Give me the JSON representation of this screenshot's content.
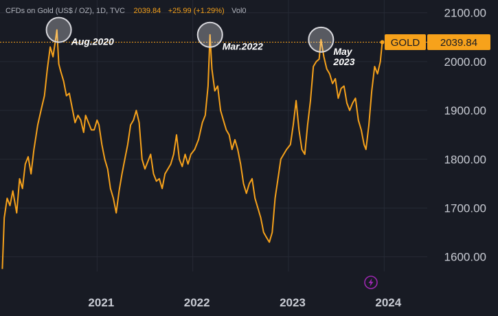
{
  "header": {
    "symbol": "CFDs on Gold (US$ / OZ), 1D, TVC",
    "price": "2039.84",
    "change": "+25.99 (+1.29%)",
    "volume": "Vol0"
  },
  "colors": {
    "background": "#181b24",
    "line": "#f7a21b",
    "grid": "#262a35",
    "text": "#c9ccd4",
    "annotation_circle": "#d9d9de"
  },
  "icons": [
    "lightning-logo-icon"
  ],
  "chart_data": {
    "type": "line",
    "title": "CFDs on Gold (US$ / OZ), 1D, TVC",
    "xlabel": "",
    "ylabel": "",
    "xlim": [
      2020.0,
      2024.45
    ],
    "ylim": [
      1570,
      2115
    ],
    "x_ticks": [
      {
        "value": 2021,
        "label": "2021"
      },
      {
        "value": 2022,
        "label": "2022"
      },
      {
        "value": 2023,
        "label": "2023"
      },
      {
        "value": 2024,
        "label": "2024"
      }
    ],
    "y_ticks": [
      {
        "value": 1600,
        "label": "1600.00"
      },
      {
        "value": 1700,
        "label": "1700.00"
      },
      {
        "value": 1800,
        "label": "1800.00"
      },
      {
        "value": 1900,
        "label": "1900.00"
      },
      {
        "value": 2000,
        "label": "2000.00"
      },
      {
        "value": 2100,
        "label": "2100.00"
      }
    ],
    "last_price_line": {
      "value": 2039.84
    },
    "price_tag": {
      "symbol": "GOLD",
      "value": "2039.84"
    },
    "annotations": [
      {
        "label": "Aug.2020",
        "x": 2020.6,
        "y": 2065
      },
      {
        "label": "Mar.2022",
        "x": 2022.18,
        "y": 2055
      },
      {
        "label": "May 2023",
        "lines": [
          "May",
          "2023"
        ],
        "x": 2023.34,
        "y": 2045
      }
    ],
    "series": [
      {
        "name": "Gold",
        "x": [
          2020.01,
          2020.03,
          2020.06,
          2020.09,
          2020.12,
          2020.16,
          2020.19,
          2020.22,
          2020.25,
          2020.28,
          2020.31,
          2020.34,
          2020.38,
          2020.42,
          2020.45,
          2020.48,
          2020.51,
          2020.54,
          2020.57,
          2020.58,
          2020.6,
          2020.62,
          2020.65,
          2020.68,
          2020.71,
          2020.74,
          2020.77,
          2020.8,
          2020.83,
          2020.86,
          2020.88,
          2020.91,
          2020.94,
          2020.97,
          2021.0,
          2021.02,
          2021.05,
          2021.08,
          2021.11,
          2021.14,
          2021.17,
          2021.2,
          2021.23,
          2021.26,
          2021.29,
          2021.32,
          2021.35,
          2021.38,
          2021.41,
          2021.44,
          2021.47,
          2021.5,
          2021.53,
          2021.56,
          2021.59,
          2021.62,
          2021.65,
          2021.68,
          2021.71,
          2021.74,
          2021.77,
          2021.8,
          2021.83,
          2021.86,
          2021.89,
          2021.92,
          2021.95,
          2021.98,
          2022.02,
          2022.06,
          2022.1,
          2022.13,
          2022.16,
          2022.18,
          2022.2,
          2022.23,
          2022.26,
          2022.29,
          2022.32,
          2022.35,
          2022.38,
          2022.41,
          2022.44,
          2022.47,
          2022.5,
          2022.53,
          2022.56,
          2022.59,
          2022.62,
          2022.65,
          2022.68,
          2022.71,
          2022.74,
          2022.77,
          2022.8,
          2022.83,
          2022.86,
          2022.89,
          2022.92,
          2022.95,
          2022.98,
          2023.02,
          2023.05,
          2023.08,
          2023.11,
          2023.14,
          2023.17,
          2023.2,
          2023.23,
          2023.26,
          2023.29,
          2023.32,
          2023.34,
          2023.37,
          2023.4,
          2023.43,
          2023.46,
          2023.49,
          2023.52,
          2023.55,
          2023.58,
          2023.61,
          2023.64,
          2023.67,
          2023.7,
          2023.73,
          2023.76,
          2023.79,
          2023.81,
          2023.84,
          2023.87,
          2023.9,
          2023.93,
          2023.96,
          2023.98
        ],
        "values": [
          1575,
          1680,
          1720,
          1705,
          1735,
          1690,
          1760,
          1740,
          1790,
          1805,
          1770,
          1820,
          1870,
          1905,
          1930,
          1985,
          2030,
          2010,
          2050,
          2065,
          1995,
          1980,
          1960,
          1930,
          1935,
          1905,
          1875,
          1890,
          1880,
          1855,
          1890,
          1875,
          1860,
          1860,
          1880,
          1870,
          1830,
          1800,
          1780,
          1740,
          1720,
          1690,
          1735,
          1770,
          1800,
          1830,
          1870,
          1880,
          1900,
          1875,
          1800,
          1780,
          1795,
          1810,
          1770,
          1755,
          1760,
          1740,
          1770,
          1780,
          1790,
          1810,
          1850,
          1800,
          1785,
          1810,
          1790,
          1810,
          1820,
          1840,
          1875,
          1890,
          1950,
          2055,
          1985,
          1940,
          1950,
          1900,
          1880,
          1860,
          1850,
          1820,
          1840,
          1820,
          1790,
          1750,
          1730,
          1750,
          1760,
          1720,
          1700,
          1680,
          1650,
          1640,
          1630,
          1650,
          1720,
          1760,
          1800,
          1810,
          1820,
          1830,
          1870,
          1920,
          1860,
          1820,
          1810,
          1870,
          1920,
          1990,
          2000,
          2005,
          2045,
          2010,
          1985,
          1975,
          1955,
          1965,
          1925,
          1945,
          1950,
          1915,
          1900,
          1915,
          1925,
          1880,
          1860,
          1830,
          1820,
          1870,
          1940,
          1990,
          1975,
          2000,
          2039.84
        ]
      }
    ]
  }
}
